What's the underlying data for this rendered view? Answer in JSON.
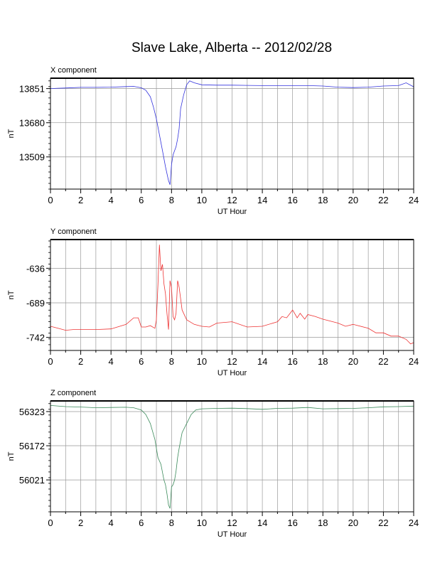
{
  "title": "Slave Lake, Alberta -- 2012/02/28",
  "colors": {
    "x": "#3333dd",
    "y": "#ee3333",
    "z": "#3a8a5a",
    "grid": "#999999"
  },
  "chart_data": [
    {
      "type": "line",
      "title": "X component",
      "xlabel": "UT Hour",
      "ylabel": "nT",
      "xlim": [
        0,
        24
      ],
      "ylim": [
        13348,
        13903
      ],
      "xticks": [
        "0",
        "2",
        "4",
        "6",
        "8",
        "10",
        "12",
        "14",
        "16",
        "18",
        "20",
        "22",
        "24"
      ],
      "yticks": [
        13851,
        13680,
        13509
      ],
      "grid": true,
      "series": [
        {
          "color": "#3333dd",
          "x": [
            0,
            0.5,
            1,
            2,
            3,
            4,
            5,
            5.5,
            6,
            6.3,
            6.6,
            6.8,
            7,
            7.2,
            7.4,
            7.6,
            7.8,
            7.9,
            8,
            8.1,
            8.2,
            8.3,
            8.4,
            8.5,
            8.6,
            8.8,
            9,
            9.2,
            9.5,
            10,
            11,
            12,
            13,
            14,
            15,
            16,
            17,
            18,
            19,
            20,
            21,
            22,
            23,
            23.5,
            24
          ],
          "y": [
            13851,
            13853,
            13854,
            13857,
            13857,
            13858,
            13861,
            13862,
            13855,
            13843,
            13810,
            13760,
            13700,
            13620,
            13540,
            13460,
            13390,
            13370,
            13470,
            13520,
            13540,
            13560,
            13600,
            13650,
            13750,
            13820,
            13870,
            13890,
            13880,
            13870,
            13868,
            13868,
            13867,
            13866,
            13866,
            13866,
            13866,
            13864,
            13858,
            13856,
            13858,
            13864,
            13866,
            13880,
            13860
          ]
        }
      ]
    },
    {
      "type": "line",
      "title": "Y component",
      "xlabel": "UT Hour",
      "ylabel": "nT",
      "xlim": [
        0,
        24
      ],
      "ylim": [
        -762,
        -592
      ],
      "xticks": [
        "0",
        "2",
        "4",
        "6",
        "8",
        "10",
        "12",
        "14",
        "16",
        "18",
        "20",
        "22",
        "24"
      ],
      "yticks": [
        -636,
        -689,
        -742
      ],
      "grid": true,
      "series": [
        {
          "color": "#ee3333",
          "x": [
            0,
            0.5,
            1,
            1.5,
            2,
            3,
            4,
            5,
            5.5,
            5.8,
            6,
            6.3,
            6.6,
            6.9,
            7,
            7.1,
            7.2,
            7.3,
            7.4,
            7.5,
            7.6,
            7.7,
            7.8,
            7.9,
            8,
            8.1,
            8.2,
            8.3,
            8.4,
            8.5,
            8.7,
            9,
            9.5,
            10,
            10.5,
            11,
            12,
            13,
            14,
            15,
            15.3,
            15.6,
            16,
            16.3,
            16.5,
            16.8,
            17,
            17.5,
            18,
            19,
            19.5,
            20,
            21,
            21.5,
            22,
            22.5,
            23,
            23.5,
            23.8,
            24
          ],
          "y": [
            -725,
            -728,
            -731,
            -730,
            -730,
            -730,
            -729,
            -722,
            -712,
            -712,
            -726,
            -726,
            -724,
            -728,
            -715,
            -662,
            -600,
            -640,
            -630,
            -660,
            -675,
            -705,
            -730,
            -655,
            -665,
            -710,
            -715,
            -705,
            -655,
            -665,
            -700,
            -715,
            -722,
            -725,
            -726,
            -720,
            -718,
            -726,
            -725,
            -718,
            -710,
            -712,
            -700,
            -712,
            -705,
            -714,
            -707,
            -710,
            -714,
            -720,
            -725,
            -722,
            -728,
            -735,
            -735,
            -740,
            -740,
            -745,
            -752,
            -750
          ]
        }
      ]
    },
    {
      "type": "line",
      "title": "Z component",
      "xlabel": "UT Hour",
      "ylabel": "nT",
      "xlim": [
        0,
        24
      ],
      "ylim": [
        55880,
        56370
      ],
      "xticks": [
        "0",
        "2",
        "4",
        "6",
        "8",
        "10",
        "12",
        "14",
        "16",
        "18",
        "20",
        "22",
        "24"
      ],
      "yticks": [
        56323,
        56172,
        56021
      ],
      "grid": true,
      "series": [
        {
          "color": "#3a8a5a",
          "x": [
            0,
            1,
            2,
            3,
            4,
            5,
            5.5,
            6,
            6.3,
            6.6,
            6.9,
            7.1,
            7.3,
            7.5,
            7.6,
            7.7,
            7.8,
            7.9,
            8,
            8.1,
            8.2,
            8.3,
            8.4,
            8.5,
            8.7,
            9,
            9.3,
            9.6,
            10,
            11,
            12,
            13,
            14,
            15,
            16,
            17,
            18,
            19,
            20,
            21,
            22,
            23,
            24
          ],
          "y": [
            56350,
            56345,
            56343,
            56340,
            56341,
            56342,
            56340,
            56330,
            56310,
            56270,
            56200,
            56120,
            56090,
            56020,
            56000,
            55960,
            55910,
            55895,
            55990,
            56000,
            56020,
            56060,
            56120,
            56160,
            56230,
            56270,
            56310,
            56330,
            56335,
            56337,
            56338,
            56336,
            56333,
            56337,
            56338,
            56341,
            56335,
            56336,
            56337,
            56340,
            56344,
            56345,
            56347
          ]
        }
      ]
    }
  ]
}
